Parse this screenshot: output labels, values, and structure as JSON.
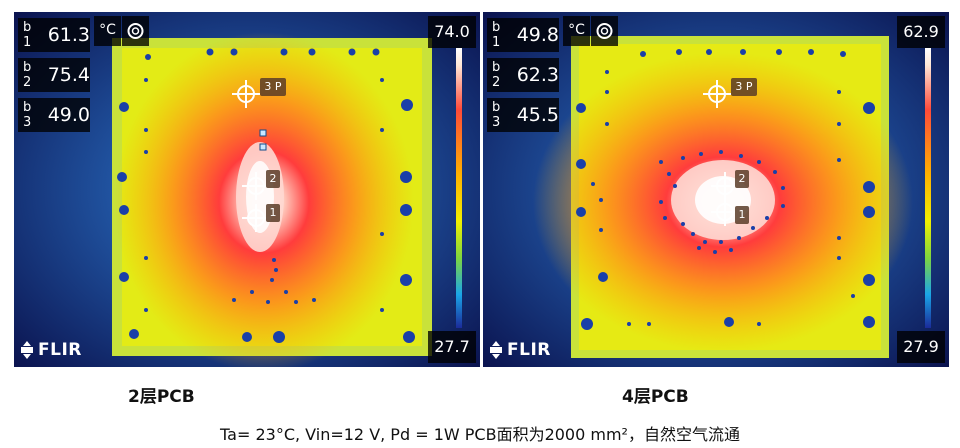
{
  "left_panel": {
    "readouts": [
      {
        "label": "b 1",
        "value": "61.3"
      },
      {
        "label": "b 2",
        "value": "75.4"
      },
      {
        "label": "b 3",
        "value": "49.0"
      }
    ],
    "unit": "°C",
    "scale_max": "74.0",
    "scale_min": "27.7",
    "spot_labels": [
      "3 P",
      "2",
      "1"
    ],
    "logo_text": "FLIR",
    "caption": "2层PCB"
  },
  "right_panel": {
    "readouts": [
      {
        "label": "b 1",
        "value": "49.8"
      },
      {
        "label": "b 2",
        "value": "62.3"
      },
      {
        "label": "b 3",
        "value": "45.5"
      }
    ],
    "unit": "°C",
    "scale_max": "62.9",
    "scale_min": "27.9",
    "spot_labels": [
      "3 P",
      "2",
      "1"
    ],
    "logo_text": "FLIR",
    "caption": "4层PCB"
  },
  "bottom_caption": "Ta= 23°C, Vin=12 V, Pd = 1W PCB面积为2000 mm²，自然空气流通",
  "colors": {
    "background": "#0b1450",
    "board": "#d8e51a",
    "hot": "#ff3d3d",
    "overlay": "#000000"
  }
}
